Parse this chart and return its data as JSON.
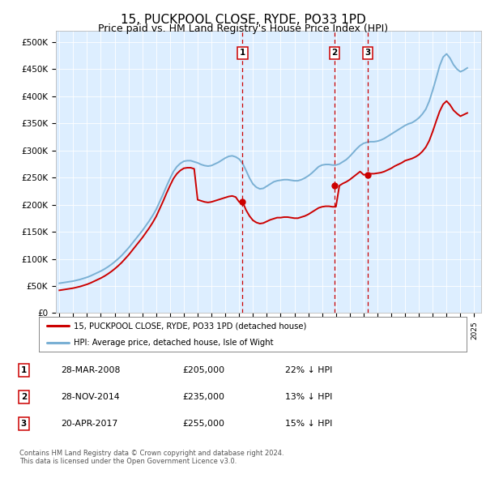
{
  "title": "15, PUCKPOOL CLOSE, RYDE, PO33 1PD",
  "subtitle": "Price paid vs. HM Land Registry's House Price Index (HPI)",
  "title_fontsize": 11,
  "subtitle_fontsize": 9,
  "background_color": "#ffffff",
  "plot_bg_color": "#ddeeff",
  "ylim": [
    0,
    520000
  ],
  "yticks": [
    0,
    50000,
    100000,
    150000,
    200000,
    250000,
    300000,
    350000,
    400000,
    450000,
    500000
  ],
  "ytick_labels": [
    "£0",
    "£50K",
    "£100K",
    "£150K",
    "£200K",
    "£250K",
    "£300K",
    "£350K",
    "£400K",
    "£450K",
    "£500K"
  ],
  "hpi_x": [
    1995.0,
    1995.25,
    1995.5,
    1995.75,
    1996.0,
    1996.25,
    1996.5,
    1996.75,
    1997.0,
    1997.25,
    1997.5,
    1997.75,
    1998.0,
    1998.25,
    1998.5,
    1998.75,
    1999.0,
    1999.25,
    1999.5,
    1999.75,
    2000.0,
    2000.25,
    2000.5,
    2000.75,
    2001.0,
    2001.25,
    2001.5,
    2001.75,
    2002.0,
    2002.25,
    2002.5,
    2002.75,
    2003.0,
    2003.25,
    2003.5,
    2003.75,
    2004.0,
    2004.25,
    2004.5,
    2004.75,
    2005.0,
    2005.25,
    2005.5,
    2005.75,
    2006.0,
    2006.25,
    2006.5,
    2006.75,
    2007.0,
    2007.25,
    2007.5,
    2007.75,
    2008.0,
    2008.25,
    2008.5,
    2008.75,
    2009.0,
    2009.25,
    2009.5,
    2009.75,
    2010.0,
    2010.25,
    2010.5,
    2010.75,
    2011.0,
    2011.25,
    2011.5,
    2011.75,
    2012.0,
    2012.25,
    2012.5,
    2012.75,
    2013.0,
    2013.25,
    2013.5,
    2013.75,
    2014.0,
    2014.25,
    2014.5,
    2014.75,
    2015.0,
    2015.25,
    2015.5,
    2015.75,
    2016.0,
    2016.25,
    2016.5,
    2016.75,
    2017.0,
    2017.25,
    2017.5,
    2017.75,
    2018.0,
    2018.25,
    2018.5,
    2018.75,
    2019.0,
    2019.25,
    2019.5,
    2019.75,
    2020.0,
    2020.25,
    2020.5,
    2020.75,
    2021.0,
    2021.25,
    2021.5,
    2021.75,
    2022.0,
    2022.25,
    2022.5,
    2022.75,
    2023.0,
    2023.25,
    2023.5,
    2023.75,
    2024.0,
    2024.25,
    2024.5
  ],
  "hpi_y": [
    55000,
    56000,
    57000,
    58000,
    59000,
    60500,
    62000,
    64000,
    66000,
    68500,
    71500,
    74500,
    77500,
    81000,
    85000,
    89500,
    94500,
    100000,
    106000,
    113000,
    120000,
    128000,
    136000,
    144000,
    152000,
    161000,
    170000,
    180000,
    191000,
    205000,
    219000,
    234000,
    248000,
    261000,
    270000,
    276000,
    280000,
    281000,
    281000,
    279000,
    277000,
    274000,
    272000,
    271000,
    272000,
    275000,
    278000,
    282000,
    286000,
    289000,
    290000,
    288000,
    284000,
    276000,
    263000,
    249000,
    238000,
    232000,
    229000,
    230000,
    234000,
    238000,
    242000,
    244000,
    245000,
    246000,
    246000,
    245000,
    244000,
    244000,
    246000,
    249000,
    253000,
    258000,
    264000,
    270000,
    273000,
    274000,
    274000,
    273000,
    273000,
    275000,
    279000,
    283000,
    289000,
    296000,
    303000,
    309000,
    313000,
    315000,
    316000,
    316000,
    317000,
    319000,
    322000,
    326000,
    330000,
    334000,
    338000,
    342000,
    346000,
    349000,
    351000,
    355000,
    360000,
    367000,
    376000,
    391000,
    411000,
    433000,
    456000,
    472000,
    478000,
    470000,
    458000,
    450000,
    445000,
    448000,
    452000
  ],
  "prop_x": [
    1995.0,
    1995.25,
    1995.5,
    1995.75,
    1996.0,
    1996.25,
    1996.5,
    1996.75,
    1997.0,
    1997.25,
    1997.5,
    1997.75,
    1998.0,
    1998.25,
    1998.5,
    1998.75,
    1999.0,
    1999.25,
    1999.5,
    1999.75,
    2000.0,
    2000.25,
    2000.5,
    2000.75,
    2001.0,
    2001.25,
    2001.5,
    2001.75,
    2002.0,
    2002.25,
    2002.5,
    2002.75,
    2003.0,
    2003.25,
    2003.5,
    2003.75,
    2004.0,
    2004.25,
    2004.5,
    2004.75,
    2005.0,
    2005.25,
    2005.5,
    2005.75,
    2006.0,
    2006.25,
    2006.5,
    2006.75,
    2007.0,
    2007.25,
    2007.5,
    2007.75,
    2008.0,
    2008.25,
    2008.5,
    2008.75,
    2009.0,
    2009.25,
    2009.5,
    2009.75,
    2010.0,
    2010.25,
    2010.5,
    2010.75,
    2011.0,
    2011.25,
    2011.5,
    2011.75,
    2012.0,
    2012.25,
    2012.5,
    2012.75,
    2013.0,
    2013.25,
    2013.5,
    2013.75,
    2014.0,
    2014.25,
    2014.5,
    2014.75,
    2015.0,
    2015.25,
    2015.5,
    2015.75,
    2016.0,
    2016.25,
    2016.5,
    2016.75,
    2017.0,
    2017.25,
    2017.5,
    2017.75,
    2018.0,
    2018.25,
    2018.5,
    2018.75,
    2019.0,
    2019.25,
    2019.5,
    2019.75,
    2020.0,
    2020.25,
    2020.5,
    2020.75,
    2021.0,
    2021.25,
    2021.5,
    2021.75,
    2022.0,
    2022.25,
    2022.5,
    2022.75,
    2023.0,
    2023.25,
    2023.5,
    2023.75,
    2024.0,
    2024.25,
    2024.5
  ],
  "prop_y": [
    42000,
    43000,
    44000,
    45000,
    46000,
    47500,
    49000,
    51000,
    53000,
    55500,
    58500,
    61500,
    64500,
    68000,
    72000,
    76500,
    81500,
    87000,
    93000,
    100000,
    107000,
    115000,
    123000,
    131000,
    139000,
    148000,
    157000,
    167000,
    178000,
    192000,
    206000,
    221000,
    235000,
    248000,
    257000,
    263000,
    267000,
    268000,
    268000,
    266000,
    209000,
    207000,
    205000,
    204000,
    205000,
    207000,
    209000,
    211000,
    213000,
    215000,
    216000,
    214000,
    205000,
    205000,
    190000,
    179000,
    171000,
    167000,
    165000,
    166000,
    169000,
    172000,
    174000,
    176000,
    176000,
    177000,
    177000,
    176000,
    175000,
    175000,
    177000,
    179000,
    182000,
    186000,
    190000,
    194000,
    196000,
    197000,
    197000,
    196000,
    196000,
    235000,
    239000,
    242000,
    246000,
    251000,
    256000,
    261000,
    255000,
    256000,
    257000,
    257000,
    258000,
    259000,
    261000,
    264000,
    267000,
    271000,
    274000,
    277000,
    281000,
    283000,
    285000,
    288000,
    292000,
    298000,
    306000,
    318000,
    335000,
    354000,
    372000,
    385000,
    391000,
    384000,
    374000,
    368000,
    363000,
    366000,
    369000
  ],
  "property_color": "#cc0000",
  "hpi_color": "#7ab0d4",
  "sale_dates": [
    2008.24,
    2014.91,
    2017.31
  ],
  "sale_prices": [
    205000,
    235000,
    255000
  ],
  "sale_labels": [
    "1",
    "2",
    "3"
  ],
  "vline_color": "#cc0000",
  "legend_property": "15, PUCKPOOL CLOSE, RYDE, PO33 1PD (detached house)",
  "legend_hpi": "HPI: Average price, detached house, Isle of Wight",
  "table_data": [
    {
      "num": "1",
      "date": "28-MAR-2008",
      "price": "£205,000",
      "hpi": "22% ↓ HPI"
    },
    {
      "num": "2",
      "date": "28-NOV-2014",
      "price": "£235,000",
      "hpi": "13% ↓ HPI"
    },
    {
      "num": "3",
      "date": "20-APR-2017",
      "price": "£255,000",
      "hpi": "15% ↓ HPI"
    }
  ],
  "footer": "Contains HM Land Registry data © Crown copyright and database right 2024.\nThis data is licensed under the Open Government Licence v3.0."
}
